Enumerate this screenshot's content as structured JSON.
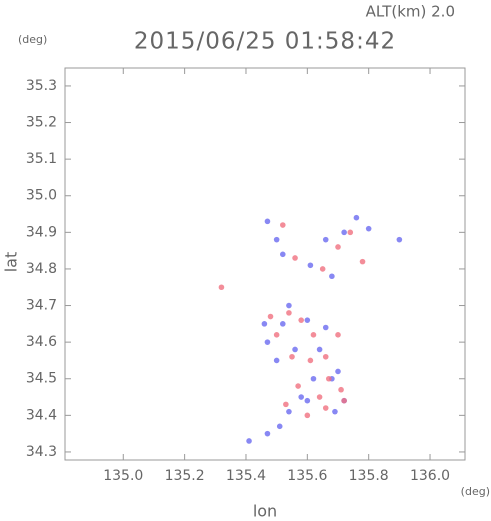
{
  "chart_data": {
    "type": "scatter",
    "title": "2015/06/25 01:58:42",
    "subtitle": "ALT(km) 2.0",
    "y_unit": "(deg)",
    "x_unit": "(deg)",
    "xlabel": "lon",
    "ylabel": "lat",
    "xlim": [
      134.81,
      136.114
    ],
    "ylim": [
      34.278,
      35.349
    ],
    "xticks": [
      {
        "value": 135.0,
        "label": "135.0"
      },
      135.2,
      135.4,
      135.6,
      135.8,
      {
        "value": 136.0,
        "label": "136.0"
      }
    ],
    "yticks": [
      34.3,
      34.4,
      34.5,
      34.6,
      34.7,
      34.8,
      34.9,
      {
        "value": 35.0,
        "label": "35.0"
      },
      35.1,
      35.2,
      35.3
    ],
    "series": [
      {
        "color": "#6a6af0",
        "x": [
          135.47,
          135.5,
          135.52,
          135.76,
          135.72,
          135.66,
          135.61,
          135.68,
          135.46,
          135.47,
          135.5,
          135.54,
          135.6,
          135.66,
          135.62,
          135.68,
          135.72,
          135.58,
          135.54,
          135.41,
          135.47,
          135.51,
          135.64,
          135.7,
          135.9,
          135.8,
          135.56,
          135.6,
          135.69,
          135.52
        ],
        "y": [
          34.93,
          34.88,
          34.84,
          34.94,
          34.9,
          34.88,
          34.81,
          34.78,
          34.65,
          34.6,
          34.55,
          34.7,
          34.66,
          34.64,
          34.5,
          34.5,
          34.44,
          34.45,
          34.41,
          34.33,
          34.35,
          34.37,
          34.58,
          34.52,
          34.88,
          34.91,
          34.58,
          34.44,
          34.41,
          34.65
        ]
      },
      {
        "color": "#f07080",
        "x": [
          135.52,
          135.32,
          135.58,
          135.62,
          135.55,
          135.57,
          135.64,
          135.66,
          135.71,
          135.72,
          135.5,
          135.54,
          135.7,
          135.78,
          135.74,
          135.65,
          135.56,
          135.67,
          135.6,
          135.53,
          135.7,
          135.61,
          135.48,
          135.66
        ],
        "y": [
          34.92,
          34.75,
          34.66,
          34.62,
          34.56,
          34.48,
          34.45,
          34.42,
          34.47,
          34.44,
          34.62,
          34.68,
          34.62,
          34.82,
          34.9,
          34.8,
          34.83,
          34.5,
          34.4,
          34.43,
          34.86,
          34.55,
          34.67,
          34.56
        ]
      }
    ]
  }
}
